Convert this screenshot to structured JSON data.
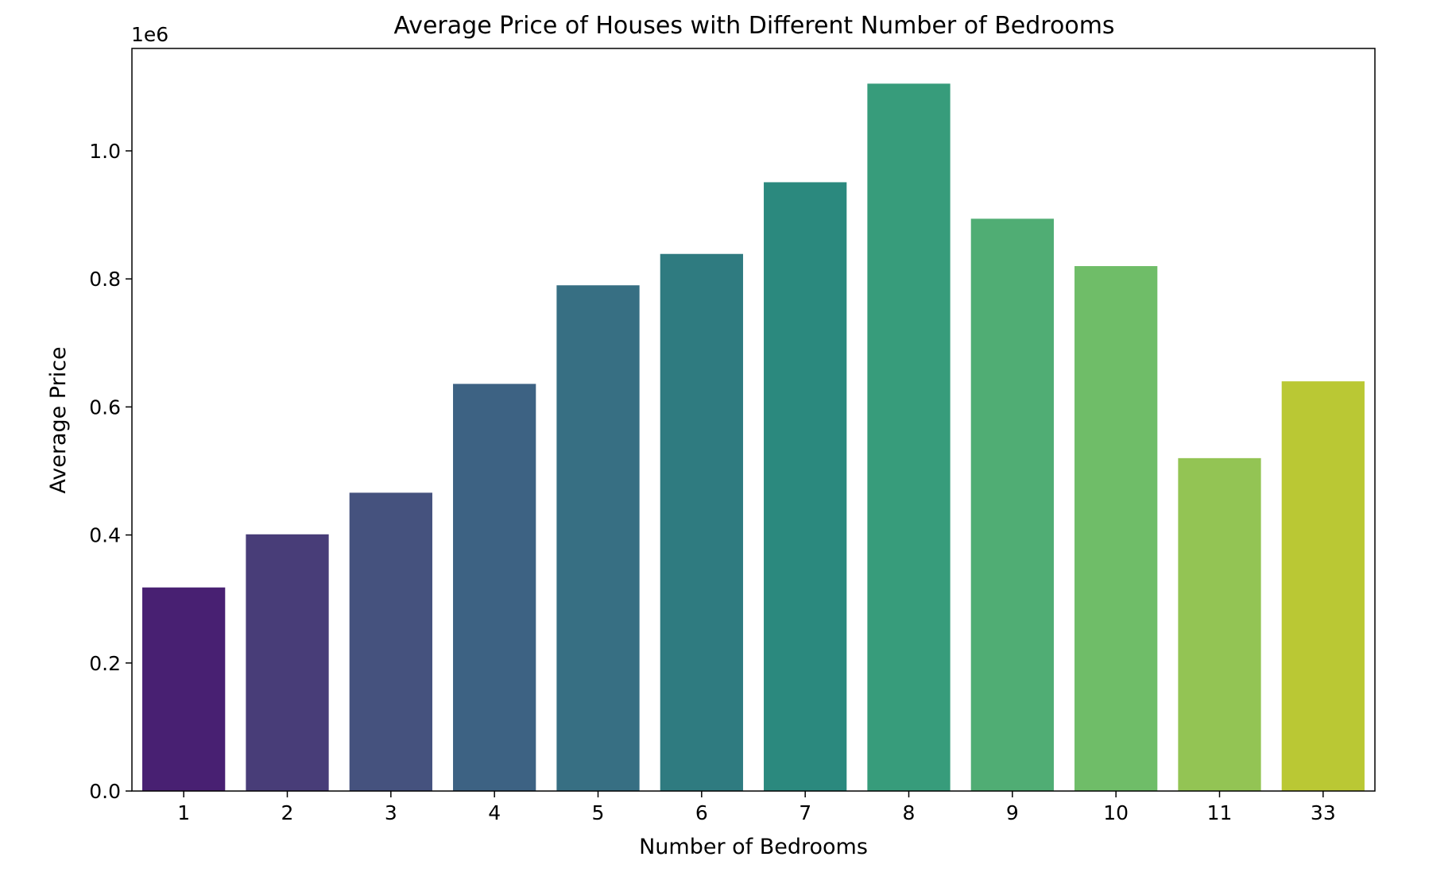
{
  "chart_data": {
    "type": "bar",
    "title": "Average Price of Houses with Different Number of Bedrooms",
    "xlabel": "Number of Bedrooms",
    "ylabel": "Average Price",
    "y_multiplier_label": "1e6",
    "categories": [
      "1",
      "2",
      "3",
      "4",
      "5",
      "6",
      "7",
      "8",
      "9",
      "10",
      "11",
      "33"
    ],
    "values": [
      318000,
      401000,
      466000,
      636000,
      790000,
      839000,
      951000,
      1105000,
      894000,
      820000,
      520000,
      640000
    ],
    "ylim": [
      0,
      1160000
    ],
    "yticks": [
      0,
      200000,
      400000,
      600000,
      800000,
      1000000
    ],
    "ytick_labels": [
      "0.0",
      "0.2",
      "0.4",
      "0.6",
      "0.8",
      "1.0"
    ],
    "grid": false,
    "legend": "none",
    "colors": [
      "#482072",
      "#483d78",
      "#45527e",
      "#3d6283",
      "#376f83",
      "#2f7b80",
      "#2b897e",
      "#379c7b",
      "#50ad74",
      "#6fbd68",
      "#93c454",
      "#bac834"
    ]
  }
}
